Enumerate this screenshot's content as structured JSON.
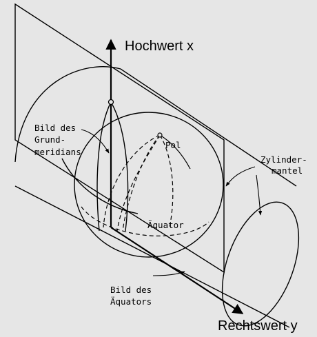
{
  "axes": {
    "x_label": "Hochwert x",
    "y_label": "Rechtswert y"
  },
  "labels": {
    "meridian_line1": "Bild des",
    "meridian_line2": "Grund-",
    "meridian_line3": "meridians",
    "pole": "Pol",
    "equator": "Äquator",
    "cylinder_line1": "Zylinder-",
    "cylinder_line2": "mantel",
    "equator_image_line1": "Bild des",
    "equator_image_line2": "Äquators"
  },
  "colors": {
    "background": "#e6e6e6",
    "ink": "#000000"
  }
}
